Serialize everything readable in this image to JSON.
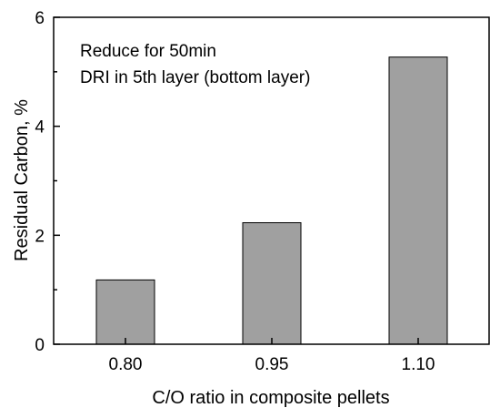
{
  "chart_data": {
    "type": "bar",
    "categories": [
      "0.80",
      "0.95",
      "1.10"
    ],
    "values": [
      1.18,
      2.23,
      5.27
    ],
    "xlabel": "C/O ratio in composite pellets",
    "ylabel": "Residual Carbon, %",
    "ylim": [
      0,
      6
    ],
    "yticks": [
      "0",
      "2",
      "4",
      "6"
    ],
    "annotations": [
      "Reduce for 50min",
      "DRI in 5th layer (bottom layer)"
    ],
    "grid": false,
    "legend": "none",
    "bar_color": "#a0a0a0"
  }
}
